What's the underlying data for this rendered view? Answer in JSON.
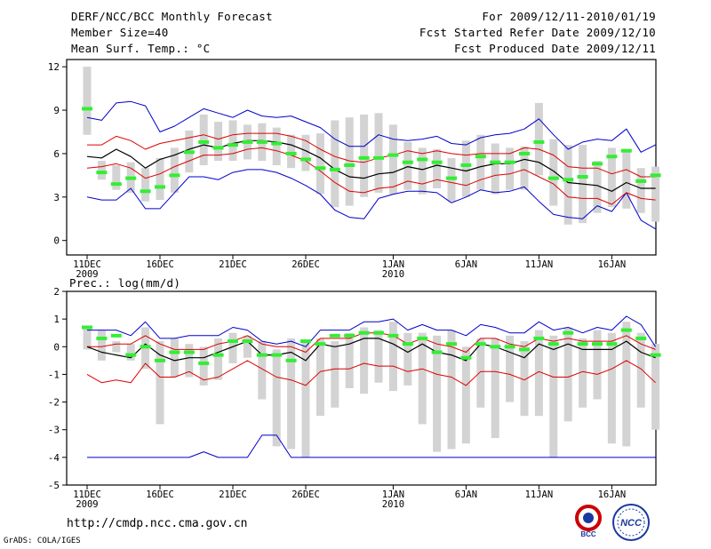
{
  "header": {
    "title": "DERF/NCC/BCC Monthly Forecast",
    "member_size": "Member Size=40",
    "variable": "Mean Surf. Temp.: °C",
    "for_period": "For 2009/12/11-2010/01/19",
    "fcst_started": "Fcst Started Refer Date 2009/12/10",
    "fcst_produced": "Fcst Produced Date 2009/12/11"
  },
  "footer": {
    "url": "http://cmdp.ncc.cma.gov.cn",
    "credit": "GrADS: COLA/IGES"
  },
  "logos": {
    "bcc_text": "BCC",
    "ncc_text": "NCC"
  },
  "colors": {
    "box": "#d3d3d3",
    "green": "#33ee33",
    "mean": "#000000",
    "red": "#dd0000",
    "blue": "#0000cc"
  },
  "chart_data": [
    {
      "type": "line",
      "title": "Mean Surf. Temp.: °C",
      "xlabel": "",
      "ylabel": "",
      "ylim": [
        -1,
        12.5
      ],
      "yticks": [
        0,
        3,
        6,
        9,
        12
      ],
      "x_ticks": [
        {
          "day": 1,
          "label": "11DEC",
          "sub": "2009"
        },
        {
          "day": 6,
          "label": "16DEC",
          "sub": ""
        },
        {
          "day": 11,
          "label": "21DEC",
          "sub": ""
        },
        {
          "day": 16,
          "label": "26DEC",
          "sub": ""
        },
        {
          "day": 22,
          "label": "1JAN",
          "sub": "2010"
        },
        {
          "day": 27,
          "label": "6JAN",
          "sub": ""
        },
        {
          "day": 32,
          "label": "11JAN",
          "sub": ""
        },
        {
          "day": 37,
          "label": "16JAN",
          "sub": ""
        }
      ],
      "box_low": [
        7.3,
        4.2,
        3.5,
        3.3,
        2.7,
        2.8,
        3.3,
        4.7,
        5.2,
        5.5,
        5.5,
        5.6,
        5.5,
        5.2,
        5.0,
        4.8,
        3.2,
        2.3,
        2.4,
        3.0,
        3.3,
        3.2,
        3.5,
        3.2,
        3.6,
        2.7,
        3.0,
        3.5,
        3.2,
        3.5,
        3.5,
        4.5,
        2.4,
        1.1,
        1.2,
        1.9,
        2.3,
        2.2,
        1.9,
        1.3
      ],
      "box_high": [
        12.0,
        5.5,
        5.2,
        5.4,
        5.0,
        5.7,
        6.4,
        7.6,
        8.7,
        8.2,
        8.3,
        8.0,
        8.1,
        7.8,
        7.3,
        7.3,
        7.4,
        8.3,
        8.5,
        8.7,
        8.8,
        8.0,
        6.8,
        6.4,
        6.3,
        5.7,
        6.9,
        7.3,
        6.7,
        6.4,
        6.5,
        9.5,
        7.0,
        6.6,
        6.6,
        5.5,
        6.4,
        6.2,
        5.0,
        5.1
      ],
      "green": [
        9.1,
        4.7,
        3.9,
        4.3,
        3.4,
        3.7,
        4.5,
        6.1,
        6.8,
        6.4,
        6.6,
        6.8,
        6.8,
        6.7,
        6.0,
        5.6,
        5.0,
        4.9,
        5.2,
        5.7,
        5.7,
        5.9,
        5.4,
        5.6,
        5.4,
        4.3,
        5.2,
        5.8,
        5.4,
        5.4,
        6.0,
        6.8,
        4.3,
        4.2,
        4.4,
        5.3,
        5.8,
        6.2,
        4.1,
        4.5
      ],
      "mean": [
        5.8,
        5.7,
        6.3,
        5.8,
        5.0,
        5.6,
        5.9,
        6.3,
        6.6,
        6.4,
        6.7,
        6.9,
        6.9,
        6.8,
        6.6,
        6.2,
        5.7,
        4.9,
        4.4,
        4.3,
        4.6,
        4.7,
        5.1,
        4.9,
        5.2,
        5.0,
        4.8,
        5.1,
        5.3,
        5.3,
        5.6,
        5.4,
        4.8,
        4.0,
        3.9,
        3.8,
        3.4,
        4.0,
        3.6,
        3.6
      ],
      "red_upper": [
        6.6,
        6.6,
        7.2,
        6.9,
        6.3,
        6.7,
        6.9,
        7.1,
        7.3,
        7.0,
        7.3,
        7.4,
        7.4,
        7.4,
        7.2,
        6.9,
        6.3,
        5.8,
        5.5,
        5.4,
        5.7,
        5.9,
        6.2,
        6.0,
        6.2,
        6.0,
        5.9,
        6.0,
        6.0,
        6.0,
        6.4,
        6.3,
        5.9,
        5.1,
        5.0,
        5.0,
        4.6,
        4.9,
        4.4,
        4.4
      ],
      "red_lower": [
        5.0,
        5.1,
        5.3,
        5.0,
        4.3,
        4.6,
        5.1,
        5.5,
        5.9,
        5.9,
        6.0,
        6.3,
        6.4,
        6.2,
        5.9,
        5.5,
        4.8,
        4.0,
        3.4,
        3.3,
        3.6,
        3.7,
        4.1,
        3.9,
        4.2,
        4.0,
        3.8,
        4.2,
        4.5,
        4.6,
        4.9,
        4.4,
        3.9,
        3.0,
        2.9,
        2.9,
        2.5,
        3.3,
        2.9,
        2.8
      ],
      "blue_upper": [
        8.5,
        8.3,
        9.5,
        9.6,
        9.3,
        7.5,
        7.9,
        8.5,
        9.1,
        8.8,
        8.5,
        9.0,
        8.6,
        8.5,
        8.6,
        8.2,
        7.8,
        7.0,
        6.5,
        6.5,
        7.3,
        7.0,
        6.9,
        7.0,
        7.2,
        6.7,
        6.6,
        7.1,
        7.3,
        7.4,
        7.7,
        8.4,
        7.3,
        6.3,
        6.8,
        7.0,
        6.9,
        7.7,
        6.1,
        6.6
      ],
      "blue_lower": [
        3.0,
        2.8,
        2.8,
        3.6,
        2.2,
        2.2,
        3.3,
        4.4,
        4.4,
        4.2,
        4.7,
        4.9,
        4.9,
        4.7,
        4.3,
        3.8,
        3.2,
        2.1,
        1.6,
        1.5,
        2.9,
        3.2,
        3.4,
        3.4,
        3.3,
        2.6,
        3.0,
        3.5,
        3.3,
        3.4,
        3.7,
        2.7,
        1.8,
        1.6,
        1.5,
        2.4,
        2.0,
        3.3,
        1.4,
        0.8
      ]
    },
    {
      "type": "line",
      "title": "Prec.: log(mm/d)",
      "xlabel": "",
      "ylabel": "",
      "ylim": [
        -5,
        2
      ],
      "yticks": [
        -5,
        -4,
        -3,
        -2,
        -1,
        0,
        1,
        2
      ],
      "x_ticks": [
        {
          "day": 1,
          "label": "11DEC",
          "sub": "2009"
        },
        {
          "day": 6,
          "label": "16DEC",
          "sub": ""
        },
        {
          "day": 11,
          "label": "21DEC",
          "sub": ""
        },
        {
          "day": 16,
          "label": "26DEC",
          "sub": ""
        },
        {
          "day": 22,
          "label": "1JAN",
          "sub": "2010"
        },
        {
          "day": 27,
          "label": "6JAN",
          "sub": ""
        },
        {
          "day": 32,
          "label": "11JAN",
          "sub": ""
        },
        {
          "day": 37,
          "label": "16JAN",
          "sub": ""
        }
      ],
      "box_low": [
        -0.1,
        -0.5,
        -0.2,
        -0.5,
        -0.8,
        -2.8,
        -1.1,
        -1.1,
        -1.4,
        -1.2,
        -0.6,
        -0.4,
        -1.9,
        -3.6,
        -3.7,
        -4.0,
        -2.5,
        -2.2,
        -1.5,
        -1.7,
        -1.3,
        -1.6,
        -1.4,
        -2.8,
        -3.8,
        -3.7,
        -3.5,
        -2.2,
        -3.3,
        -2.0,
        -2.5,
        -2.5,
        -4.0,
        -2.7,
        -2.2,
        -1.9,
        -3.5,
        -3.6,
        -2.2,
        -3.0
      ],
      "box_high": [
        0.7,
        0.6,
        0.2,
        0.1,
        0.7,
        0.2,
        0.3,
        0.1,
        0.0,
        0.3,
        0.5,
        0.4,
        0.2,
        -0.1,
        0.3,
        0.2,
        0.3,
        0.2,
        0.5,
        0.7,
        0.6,
        0.9,
        0.5,
        0.5,
        0.4,
        0.6,
        0.0,
        0.3,
        0.3,
        0.4,
        0.2,
        0.6,
        0.4,
        0.7,
        0.3,
        0.6,
        0.5,
        0.9,
        0.5,
        0.1
      ],
      "green": [
        0.7,
        0.3,
        0.4,
        -0.3,
        0.0,
        -0.5,
        -0.2,
        -0.2,
        -0.6,
        -0.3,
        0.2,
        0.2,
        -0.3,
        -0.3,
        -0.5,
        0.2,
        0.1,
        0.4,
        0.4,
        0.5,
        0.5,
        0.4,
        0.1,
        0.3,
        -0.2,
        0.1,
        -0.4,
        0.1,
        0.0,
        0.0,
        -0.1,
        0.3,
        0.1,
        0.5,
        0.1,
        0.1,
        0.1,
        0.6,
        0.3,
        -0.3
      ],
      "mean": [
        0.0,
        -0.2,
        -0.3,
        -0.4,
        0.1,
        -0.3,
        -0.5,
        -0.4,
        -0.4,
        -0.2,
        0.0,
        0.2,
        -0.3,
        -0.3,
        -0.2,
        -0.5,
        0.1,
        0.0,
        0.1,
        0.3,
        0.3,
        0.1,
        -0.2,
        0.1,
        -0.2,
        -0.3,
        -0.5,
        0.1,
        0.0,
        -0.2,
        -0.4,
        0.1,
        -0.1,
        0.1,
        -0.1,
        -0.1,
        -0.1,
        0.2,
        -0.2,
        -0.4
      ],
      "red_upper": [
        0.0,
        0.0,
        0.1,
        0.1,
        0.4,
        0.1,
        -0.1,
        -0.1,
        -0.1,
        0.1,
        0.2,
        0.4,
        0.1,
        0.0,
        0.0,
        -0.2,
        0.3,
        0.3,
        0.3,
        0.5,
        0.5,
        0.4,
        0.1,
        0.3,
        0.1,
        0.0,
        -0.2,
        0.3,
        0.3,
        0.1,
        0.0,
        0.3,
        0.2,
        0.3,
        0.2,
        0.2,
        0.2,
        0.4,
        0.1,
        -0.1
      ],
      "red_lower": [
        -1.0,
        -1.3,
        -1.2,
        -1.3,
        -0.6,
        -1.1,
        -1.1,
        -0.9,
        -1.2,
        -1.1,
        -0.8,
        -0.5,
        -0.8,
        -1.1,
        -1.2,
        -1.4,
        -0.9,
        -0.8,
        -0.8,
        -0.6,
        -0.7,
        -0.7,
        -0.9,
        -0.8,
        -1.0,
        -1.1,
        -1.4,
        -0.9,
        -0.9,
        -1.0,
        -1.2,
        -0.9,
        -1.1,
        -1.1,
        -0.9,
        -1.0,
        -0.8,
        -0.5,
        -0.8,
        -1.3
      ],
      "blue_upper": [
        0.6,
        0.6,
        0.6,
        0.4,
        0.9,
        0.3,
        0.3,
        0.4,
        0.4,
        0.4,
        0.7,
        0.6,
        0.2,
        0.1,
        0.2,
        0.0,
        0.6,
        0.6,
        0.6,
        0.9,
        0.9,
        1.0,
        0.6,
        0.8,
        0.6,
        0.6,
        0.4,
        0.8,
        0.7,
        0.5,
        0.5,
        0.9,
        0.6,
        0.7,
        0.5,
        0.7,
        0.6,
        1.1,
        0.8,
        0.0
      ],
      "blue_lower": [
        -4.0,
        -4.0,
        -4.0,
        -4.0,
        -4.0,
        -4.0,
        -4.0,
        -4.0,
        -3.8,
        -4.0,
        -4.0,
        -4.0,
        -3.2,
        -3.2,
        -4.0,
        -4.0,
        -4.0,
        -4.0,
        -4.0,
        -4.0,
        -4.0,
        -4.0,
        -4.0,
        -4.0,
        -4.0,
        -4.0,
        -4.0,
        -4.0,
        -4.0,
        -4.0,
        -4.0,
        -4.0,
        -4.0,
        -4.0,
        -4.0,
        -4.0,
        -4.0,
        -4.0,
        -4.0,
        -4.0
      ]
    }
  ]
}
